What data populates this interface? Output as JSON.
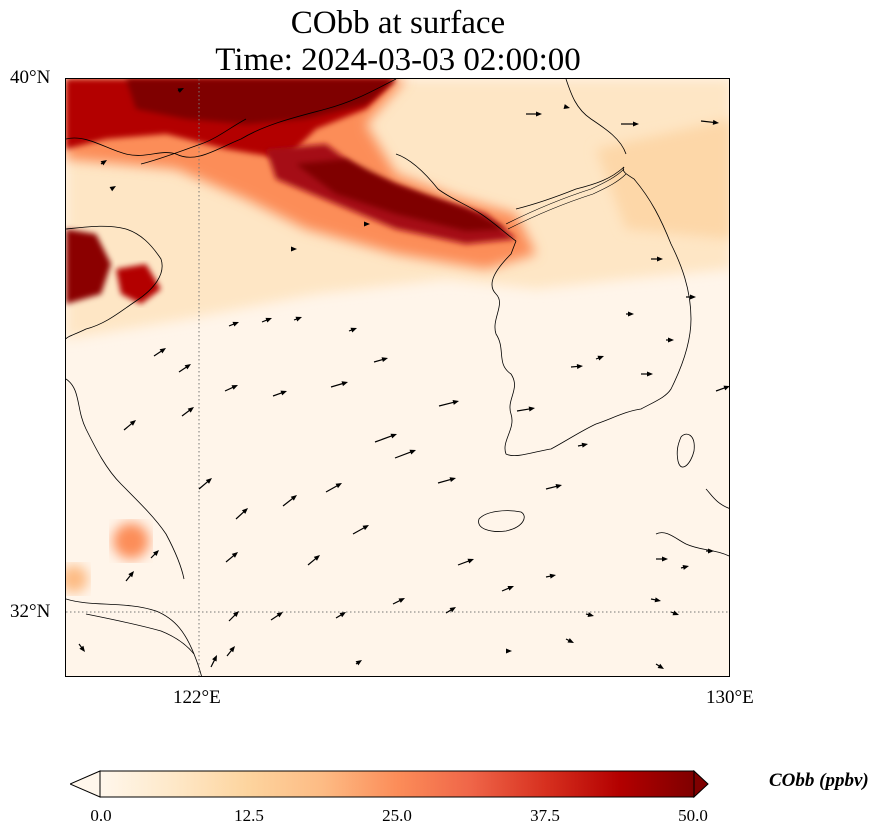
{
  "title": {
    "line1": "CObb at surface",
    "line2": "Time: 2024-03-03 02:00:00"
  },
  "axes": {
    "lon_ticks": [
      {
        "value": 122,
        "label": "122°E"
      },
      {
        "value": 130,
        "label": "130°E"
      }
    ],
    "lat_ticks": [
      {
        "value": 40,
        "label": "40°N"
      },
      {
        "value": 32,
        "label": "32°N"
      }
    ],
    "lon_range": [
      120,
      130
    ],
    "lat_range": [
      31,
      40
    ],
    "gridlines": "dotted"
  },
  "colorbar": {
    "label": "CObb (ppbv)",
    "ticks": [
      "0.0",
      "12.5",
      "25.0",
      "37.5",
      "50.0"
    ],
    "min": 0,
    "max": 50,
    "extend": "both",
    "colormap": "OrRd",
    "colors": [
      "#fff7ec",
      "#fee8c8",
      "#fdd49e",
      "#fdbb84",
      "#fc8d59",
      "#ef6548",
      "#d7301f",
      "#b30000",
      "#7f0000"
    ]
  },
  "map": {
    "field": "CObb",
    "overlay": "wind-vectors",
    "plume_band": "high concentration band from north-west toward Korean coast near 38°N",
    "land_color": "coastlines only"
  }
}
